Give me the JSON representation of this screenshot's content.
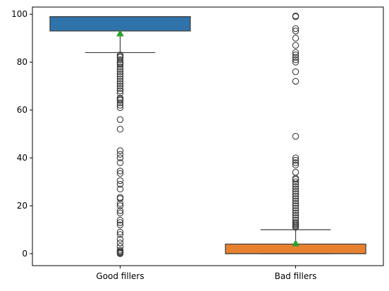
{
  "chart_data": {
    "type": "box",
    "title": "",
    "xlabel": "",
    "ylabel": "",
    "ylim": [
      -5,
      103
    ],
    "yticks": [
      0,
      20,
      40,
      60,
      80,
      100
    ],
    "ytick_labels": [
      "0",
      "20",
      "40",
      "60",
      "80",
      "100"
    ],
    "categories": [
      "Good fillers",
      "Bad fillers"
    ],
    "boxes": [
      {
        "name": "Good fillers",
        "color": "#2f73aa",
        "whisker_low": 84,
        "q1": 93,
        "median": 99,
        "q3": 99,
        "whisker_high": 99,
        "mean": 92,
        "outliers": [
          0,
          0.3,
          0.6,
          1,
          1.5,
          3,
          4.5,
          6,
          8,
          9,
          12,
          13,
          14,
          17,
          18,
          20,
          21,
          23,
          23.5,
          27,
          29,
          30.5,
          33.5,
          34.5,
          38,
          40,
          41.5,
          43,
          52,
          56,
          61,
          62,
          63,
          64,
          64.5,
          65,
          67,
          68,
          69,
          70,
          71,
          72,
          73,
          74,
          75,
          76,
          77,
          78,
          79,
          79.5,
          80,
          81,
          82,
          82.5,
          83
        ]
      },
      {
        "name": "Bad fillers",
        "color": "#e8812f",
        "whisker_low": 0,
        "q1": 0,
        "median": 0,
        "q3": 4,
        "whisker_high": 10,
        "mean": 4.3,
        "outliers": [
          11,
          11.5,
          12,
          12.5,
          13,
          14,
          15,
          16,
          17,
          18,
          19,
          20,
          21,
          22,
          23,
          24,
          25,
          26,
          27,
          28,
          29,
          30,
          31,
          31.5,
          34,
          37,
          38,
          39,
          40,
          49,
          72,
          76,
          80,
          81,
          82,
          83,
          84,
          87,
          90,
          93,
          94,
          99,
          99.3
        ]
      }
    ],
    "mean_marker_color": "#2ca02c",
    "grid": false
  }
}
